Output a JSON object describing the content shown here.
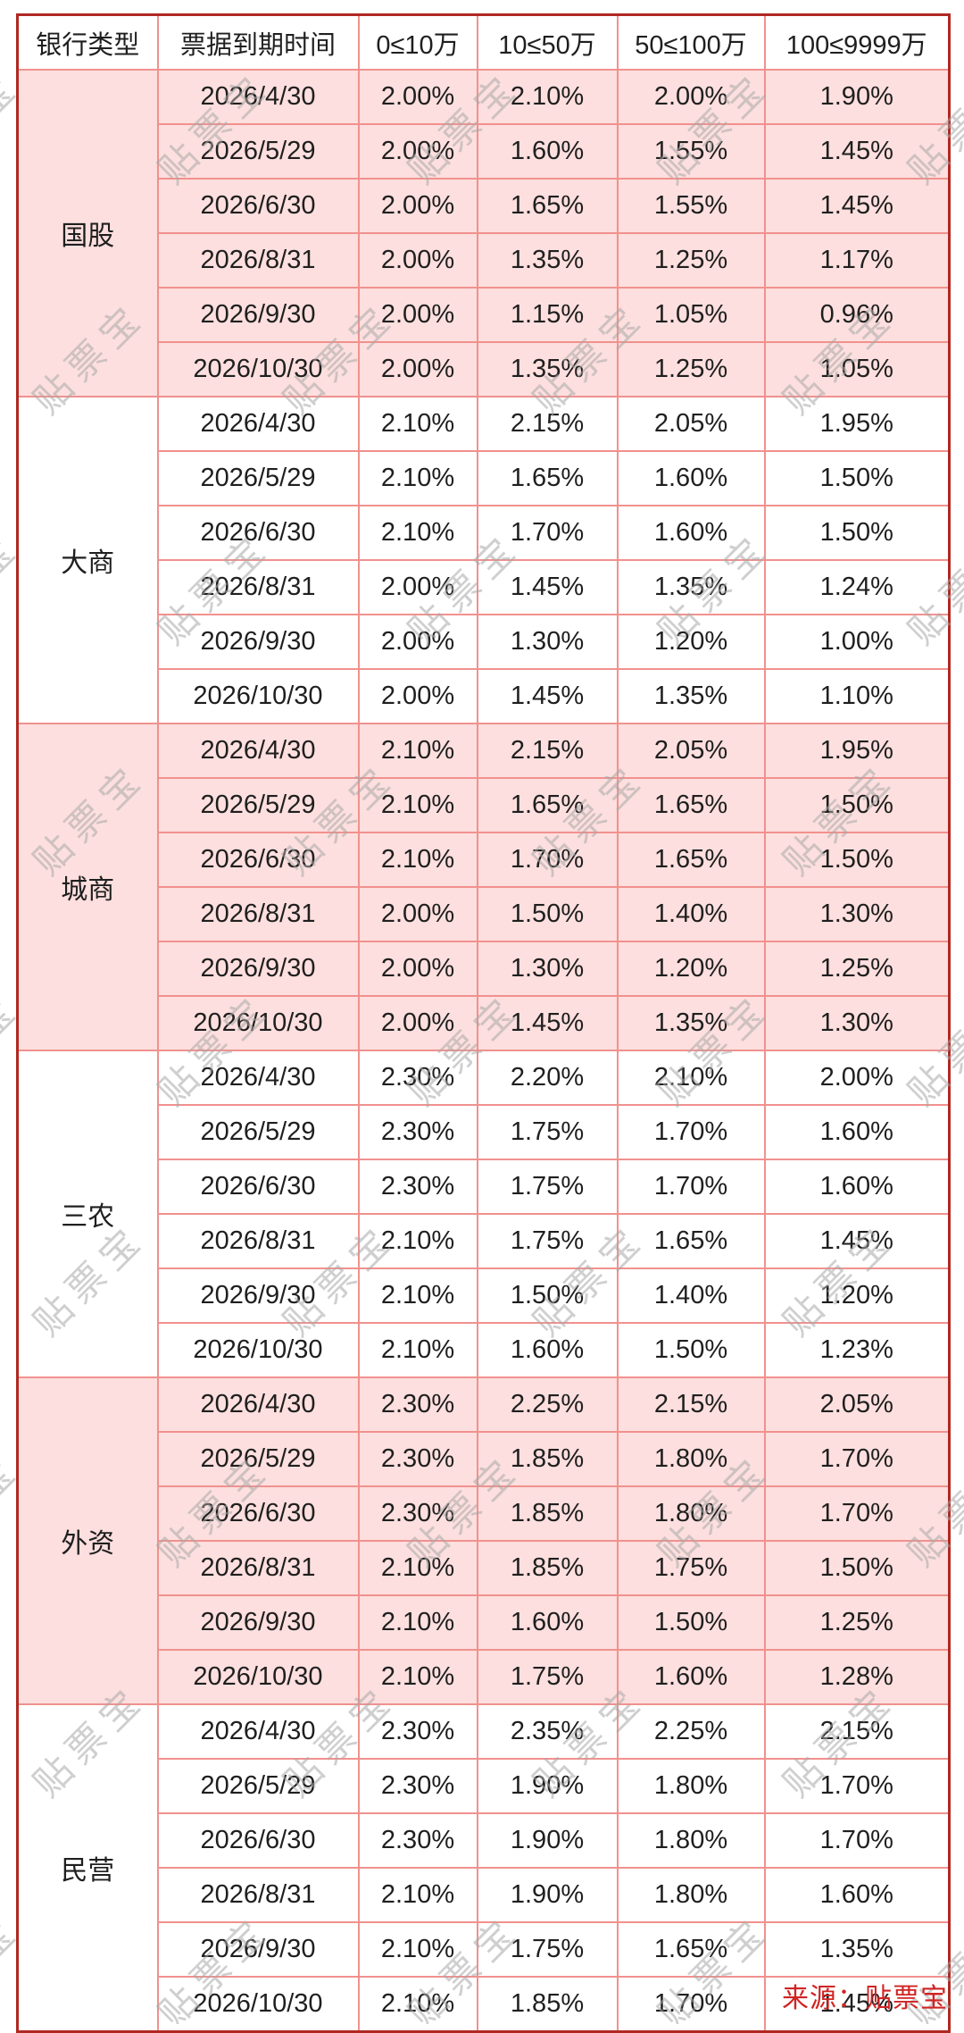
{
  "chart_data": {
    "type": "table",
    "headers": [
      "银行类型",
      "票据到期时间",
      "0≤10万",
      "10≤50万",
      "50≤100万",
      "100≤9999万"
    ],
    "sections": [
      {
        "bank": "国股",
        "rows": [
          [
            "2026/4/30",
            "2.00%",
            "2.10%",
            "2.00%",
            "1.90%"
          ],
          [
            "2026/5/29",
            "2.00%",
            "1.60%",
            "1.55%",
            "1.45%"
          ],
          [
            "2026/6/30",
            "2.00%",
            "1.65%",
            "1.55%",
            "1.45%"
          ],
          [
            "2026/8/31",
            "2.00%",
            "1.35%",
            "1.25%",
            "1.17%"
          ],
          [
            "2026/9/30",
            "2.00%",
            "1.15%",
            "1.05%",
            "0.96%"
          ],
          [
            "2026/10/30",
            "2.00%",
            "1.35%",
            "1.25%",
            "1.05%"
          ]
        ]
      },
      {
        "bank": "大商",
        "rows": [
          [
            "2026/4/30",
            "2.10%",
            "2.15%",
            "2.05%",
            "1.95%"
          ],
          [
            "2026/5/29",
            "2.10%",
            "1.65%",
            "1.60%",
            "1.50%"
          ],
          [
            "2026/6/30",
            "2.10%",
            "1.70%",
            "1.60%",
            "1.50%"
          ],
          [
            "2026/8/31",
            "2.00%",
            "1.45%",
            "1.35%",
            "1.24%"
          ],
          [
            "2026/9/30",
            "2.00%",
            "1.30%",
            "1.20%",
            "1.00%"
          ],
          [
            "2026/10/30",
            "2.00%",
            "1.45%",
            "1.35%",
            "1.10%"
          ]
        ]
      },
      {
        "bank": "城商",
        "rows": [
          [
            "2026/4/30",
            "2.10%",
            "2.15%",
            "2.05%",
            "1.95%"
          ],
          [
            "2026/5/29",
            "2.10%",
            "1.65%",
            "1.65%",
            "1.50%"
          ],
          [
            "2026/6/30",
            "2.10%",
            "1.70%",
            "1.65%",
            "1.50%"
          ],
          [
            "2026/8/31",
            "2.00%",
            "1.50%",
            "1.40%",
            "1.30%"
          ],
          [
            "2026/9/30",
            "2.00%",
            "1.30%",
            "1.20%",
            "1.25%"
          ],
          [
            "2026/10/30",
            "2.00%",
            "1.45%",
            "1.35%",
            "1.30%"
          ]
        ]
      },
      {
        "bank": "三农",
        "rows": [
          [
            "2026/4/30",
            "2.30%",
            "2.20%",
            "2.10%",
            "2.00%"
          ],
          [
            "2026/5/29",
            "2.30%",
            "1.75%",
            "1.70%",
            "1.60%"
          ],
          [
            "2026/6/30",
            "2.30%",
            "1.75%",
            "1.70%",
            "1.60%"
          ],
          [
            "2026/8/31",
            "2.10%",
            "1.75%",
            "1.65%",
            "1.45%"
          ],
          [
            "2026/9/30",
            "2.10%",
            "1.50%",
            "1.40%",
            "1.20%"
          ],
          [
            "2026/10/30",
            "2.10%",
            "1.60%",
            "1.50%",
            "1.23%"
          ]
        ]
      },
      {
        "bank": "外资",
        "rows": [
          [
            "2026/4/30",
            "2.30%",
            "2.25%",
            "2.15%",
            "2.05%"
          ],
          [
            "2026/5/29",
            "2.30%",
            "1.85%",
            "1.80%",
            "1.70%"
          ],
          [
            "2026/6/30",
            "2.30%",
            "1.85%",
            "1.80%",
            "1.70%"
          ],
          [
            "2026/8/31",
            "2.10%",
            "1.85%",
            "1.75%",
            "1.50%"
          ],
          [
            "2026/9/30",
            "2.10%",
            "1.60%",
            "1.50%",
            "1.25%"
          ],
          [
            "2026/10/30",
            "2.10%",
            "1.75%",
            "1.60%",
            "1.28%"
          ]
        ]
      },
      {
        "bank": "民营",
        "rows": [
          [
            "2026/4/30",
            "2.30%",
            "2.35%",
            "2.25%",
            "2.15%"
          ],
          [
            "2026/5/29",
            "2.30%",
            "1.90%",
            "1.80%",
            "1.70%"
          ],
          [
            "2026/6/30",
            "2.30%",
            "1.90%",
            "1.80%",
            "1.70%"
          ],
          [
            "2026/8/31",
            "2.10%",
            "1.90%",
            "1.80%",
            "1.60%"
          ],
          [
            "2026/9/30",
            "2.10%",
            "1.75%",
            "1.65%",
            "1.35%"
          ],
          [
            "2026/10/30",
            "2.10%",
            "1.85%",
            "1.70%",
            "1.45%"
          ]
        ]
      }
    ],
    "layout": {
      "grid": "on",
      "shaded_section_background_alternating": true
    }
  },
  "watermark": {
    "text": "贴票宝"
  },
  "footer": {
    "source_label": "来源：贴票宝"
  },
  "colors": {
    "outer_border": "#b02822",
    "grid_line": "#f1918e",
    "row_pink": "#fcdfde",
    "text": "#1f1f1f",
    "source_red": "#d02424"
  }
}
